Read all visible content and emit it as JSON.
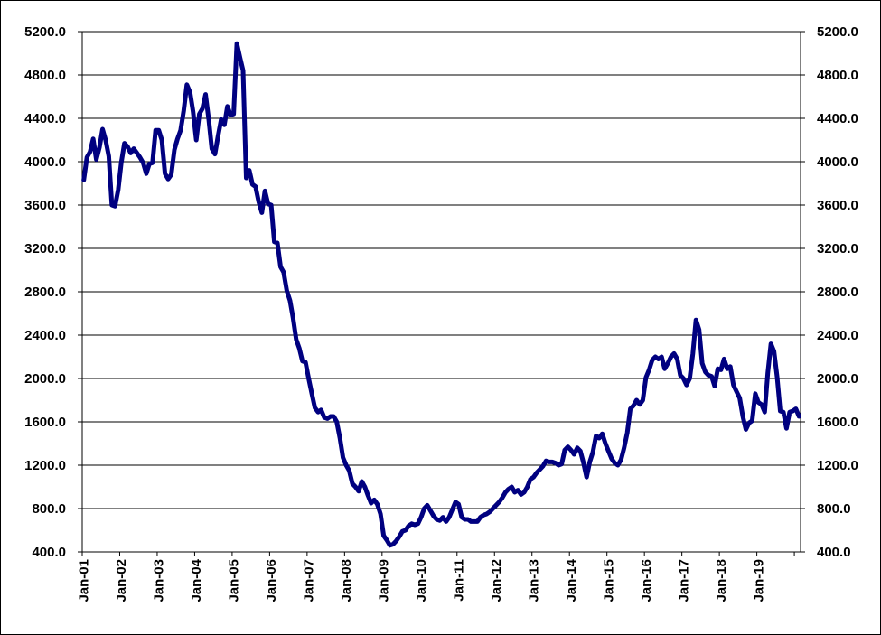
{
  "chart_data": {
    "type": "line",
    "title": "",
    "xlabel": "",
    "ylabel": "",
    "ylim": [
      400,
      5200
    ],
    "y_ticks": [
      "400.0",
      "800.0",
      "1200.0",
      "1600.0",
      "2000.0",
      "2400.0",
      "2800.0",
      "3200.0",
      "3600.0",
      "4000.0",
      "4400.0",
      "4800.0",
      "5200.0"
    ],
    "x_ticks": [
      "Jan-01",
      "Jan-02",
      "Jan-03",
      "Jan-04",
      "Jan-05",
      "Jan-06",
      "Jan-07",
      "Jan-08",
      "Jan-09",
      "Jan-10",
      "Jan-11",
      "Jan-12",
      "Jan-13",
      "Jan-14",
      "Jan-15",
      "Jan-16",
      "Jan-17",
      "Jan-18",
      "Jan-19"
    ],
    "grid": "horizontal",
    "legend": "none",
    "right_axis": true,
    "line_color": "#000080",
    "series": [
      {
        "name": "",
        "start": "Jan-01",
        "frequency": "monthly",
        "values": [
          3830,
          4040,
          4090,
          4210,
          4020,
          4130,
          4300,
          4200,
          4050,
          3600,
          3590,
          3740,
          3990,
          4170,
          4140,
          4080,
          4120,
          4080,
          4040,
          3990,
          3890,
          3980,
          3990,
          4290,
          4290,
          4200,
          3890,
          3840,
          3880,
          4110,
          4210,
          4290,
          4470,
          4710,
          4640,
          4460,
          4200,
          4440,
          4490,
          4620,
          4390,
          4120,
          4070,
          4240,
          4390,
          4340,
          4510,
          4430,
          4440,
          5090,
          4960,
          4840,
          3850,
          3920,
          3790,
          3770,
          3630,
          3530,
          3730,
          3610,
          3600,
          3260,
          3250,
          3030,
          2980,
          2810,
          2720,
          2560,
          2360,
          2280,
          2160,
          2150,
          2000,
          1860,
          1730,
          1690,
          1710,
          1640,
          1630,
          1650,
          1650,
          1600,
          1450,
          1270,
          1200,
          1150,
          1030,
          1000,
          960,
          1050,
          1000,
          920,
          850,
          880,
          840,
          750,
          550,
          510,
          460,
          470,
          500,
          540,
          590,
          600,
          640,
          660,
          650,
          660,
          720,
          800,
          830,
          780,
          730,
          700,
          690,
          720,
          680,
          720,
          790,
          860,
          840,
          720,
          700,
          700,
          680,
          680,
          680,
          720,
          740,
          750,
          770,
          800,
          830,
          860,
          900,
          950,
          980,
          1000,
          950,
          970,
          930,
          950,
          1000,
          1070,
          1090,
          1130,
          1160,
          1190,
          1240,
          1230,
          1230,
          1220,
          1200,
          1210,
          1340,
          1370,
          1340,
          1300,
          1360,
          1330,
          1220,
          1090,
          1230,
          1320,
          1470,
          1450,
          1490,
          1400,
          1330,
          1260,
          1220,
          1200,
          1250,
          1360,
          1500,
          1720,
          1750,
          1800,
          1760,
          1800,
          2010,
          2080,
          2170,
          2200,
          2180,
          2200,
          2090,
          2140,
          2200,
          2230,
          2180,
          2030,
          2000,
          1940,
          2000,
          2230,
          2540,
          2450,
          2140,
          2060,
          2030,
          2020,
          1930,
          2090,
          2080,
          2180,
          2090,
          2110,
          1940,
          1880,
          1820,
          1650,
          1530,
          1590,
          1610,
          1860,
          1780,
          1760,
          1690,
          2050,
          2320,
          2250,
          2010,
          1700,
          1690,
          1540,
          1690,
          1700,
          1720,
          1650
        ]
      }
    ]
  }
}
